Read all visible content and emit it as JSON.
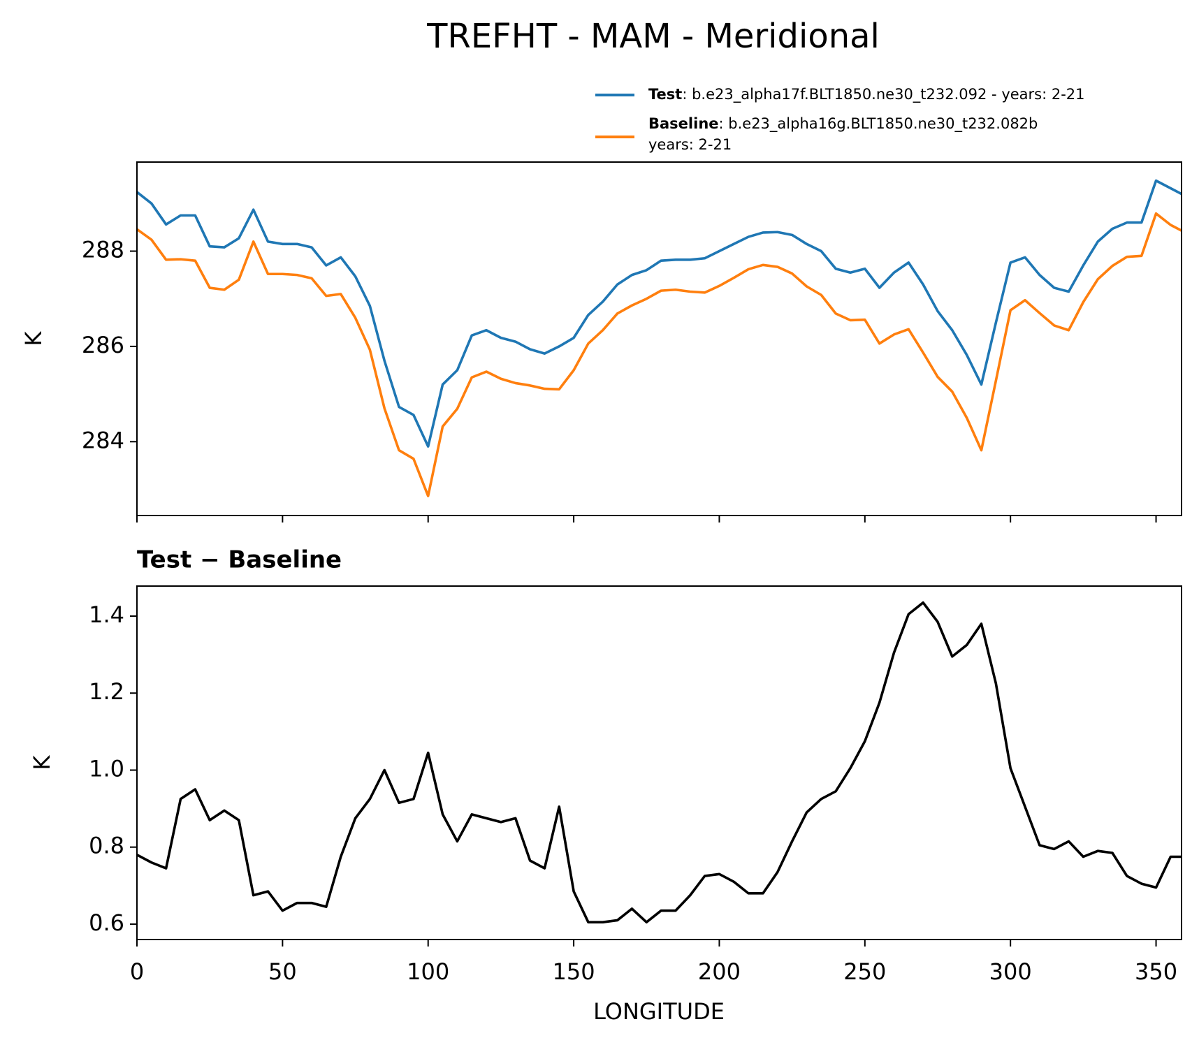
{
  "chart_data": [
    {
      "type": "line",
      "title": "TREFHT - MAM - Meridional",
      "ylabel": "K",
      "x": [
        0,
        5,
        10,
        15,
        20,
        25,
        30,
        35,
        40,
        45,
        50,
        55,
        60,
        65,
        70,
        75,
        80,
        85,
        90,
        95,
        100,
        105,
        110,
        115,
        120,
        125,
        130,
        135,
        140,
        145,
        150,
        155,
        160,
        165,
        170,
        175,
        180,
        185,
        190,
        195,
        200,
        205,
        210,
        215,
        220,
        225,
        230,
        235,
        240,
        245,
        250,
        255,
        260,
        265,
        270,
        275,
        280,
        285,
        290,
        295,
        300,
        305,
        310,
        315,
        320,
        325,
        330,
        335,
        340,
        345,
        350,
        355,
        358.75
      ],
      "series": [
        {
          "name": "Test",
          "label_lines": [
            ": b.e23_alpha17f.BLT1850.ne30_t232.092 - years: 2-21"
          ],
          "color": "#1f77b4",
          "values": [
            289.24,
            289.0,
            288.56,
            288.75,
            288.75,
            288.1,
            288.08,
            288.27,
            288.87,
            288.2,
            288.15,
            288.15,
            288.08,
            287.7,
            287.87,
            287.47,
            286.85,
            285.7,
            284.73,
            284.56,
            283.9,
            285.2,
            285.5,
            286.23,
            286.34,
            286.18,
            286.1,
            285.94,
            285.85,
            286.0,
            286.18,
            286.66,
            286.94,
            287.3,
            287.5,
            287.6,
            287.8,
            287.82,
            287.82,
            287.85,
            288.0,
            288.15,
            288.3,
            288.39,
            288.4,
            288.34,
            288.15,
            288.0,
            287.63,
            287.55,
            287.63,
            287.23,
            287.55,
            287.76,
            287.3,
            286.74,
            286.34,
            285.82,
            285.2,
            286.5,
            287.76,
            287.87,
            287.5,
            287.23,
            287.15,
            287.7,
            288.2,
            288.47,
            288.6,
            288.6,
            289.48,
            289.32,
            289.2
          ]
        },
        {
          "name": "Baseline",
          "label_lines": [
            ": b.e23_alpha16g.BLT1850.ne30_t232.082b",
            "years: 2-21"
          ],
          "color": "#ff7f0e",
          "values": [
            288.46,
            288.24,
            287.82,
            287.83,
            287.8,
            287.23,
            287.19,
            287.4,
            288.2,
            287.52,
            287.52,
            287.5,
            287.43,
            287.06,
            287.1,
            286.6,
            285.93,
            284.7,
            283.82,
            283.64,
            282.86,
            284.32,
            284.69,
            285.35,
            285.47,
            285.32,
            285.23,
            285.18,
            285.11,
            285.1,
            285.5,
            286.06,
            286.34,
            286.69,
            286.86,
            287.0,
            287.17,
            287.19,
            287.15,
            287.13,
            287.27,
            287.44,
            287.62,
            287.71,
            287.67,
            287.53,
            287.26,
            287.08,
            286.69,
            286.55,
            286.56,
            286.06,
            286.25,
            286.36,
            285.87,
            285.36,
            285.05,
            284.5,
            283.82,
            285.28,
            286.76,
            286.97,
            286.7,
            286.44,
            286.34,
            286.93,
            287.41,
            287.69,
            287.88,
            287.9,
            288.79,
            288.55,
            288.43
          ]
        }
      ],
      "xlim": [
        0,
        358.75
      ],
      "xticks": [
        0,
        50,
        100,
        150,
        200,
        250,
        300,
        350
      ],
      "ylim": [
        282.45,
        289.87
      ],
      "yticks": [
        284,
        286,
        288
      ],
      "legend": "upper right"
    },
    {
      "type": "line",
      "title": "Test − Baseline",
      "ylabel": "K",
      "xlabel": "LONGITUDE",
      "x": [
        0,
        5,
        10,
        15,
        20,
        25,
        30,
        35,
        40,
        45,
        50,
        55,
        60,
        65,
        70,
        75,
        80,
        85,
        90,
        95,
        100,
        105,
        110,
        115,
        120,
        125,
        130,
        135,
        140,
        145,
        150,
        155,
        160,
        165,
        170,
        175,
        180,
        185,
        190,
        195,
        200,
        205,
        210,
        215,
        220,
        225,
        230,
        235,
        240,
        245,
        250,
        255,
        260,
        265,
        270,
        275,
        280,
        285,
        290,
        295,
        300,
        305,
        310,
        315,
        320,
        325,
        330,
        335,
        340,
        345,
        350,
        355,
        358.75
      ],
      "color": "#000000",
      "values": [
        0.78,
        0.76,
        0.745,
        0.925,
        0.95,
        0.87,
        0.895,
        0.87,
        0.675,
        0.685,
        0.635,
        0.655,
        0.655,
        0.645,
        0.775,
        0.875,
        0.925,
        1.0,
        0.915,
        0.925,
        1.045,
        0.885,
        0.815,
        0.885,
        0.875,
        0.865,
        0.875,
        0.765,
        0.745,
        0.905,
        0.685,
        0.605,
        0.605,
        0.61,
        0.64,
        0.605,
        0.635,
        0.635,
        0.675,
        0.725,
        0.73,
        0.71,
        0.68,
        0.68,
        0.735,
        0.815,
        0.89,
        0.925,
        0.945,
        1.005,
        1.075,
        1.175,
        1.305,
        1.405,
        1.435,
        1.385,
        1.295,
        1.325,
        1.38,
        1.225,
        1.005,
        0.905,
        0.805,
        0.795,
        0.815,
        0.775,
        0.79,
        0.785,
        0.725,
        0.705,
        0.695,
        0.775,
        0.775
      ],
      "xlim": [
        0,
        358.75
      ],
      "xticks": [
        0,
        50,
        100,
        150,
        200,
        250,
        300,
        350
      ],
      "ylim": [
        0.56,
        1.478
      ],
      "yticks": [
        0.6,
        0.8,
        {
          "value": 1,
          "label": "1.0"
        },
        1.2,
        1.4
      ]
    }
  ]
}
